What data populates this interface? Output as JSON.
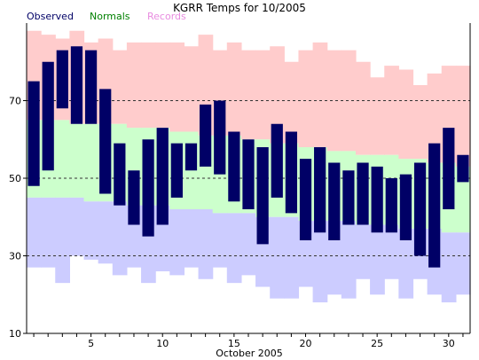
{
  "chart_data": {
    "type": "bar",
    "title": "KGRR Temps for 10/2005",
    "xlabel": "October 2005",
    "ylabel": "",
    "legend": [
      {
        "label": "Observed",
        "color": "#000066"
      },
      {
        "label": "Normals",
        "color": "#008000"
      },
      {
        "label": "Records",
        "color": "#e88ce0"
      }
    ],
    "ylim": [
      10,
      90
    ],
    "xlim": [
      0.5,
      31.5
    ],
    "x_ticks": [
      5,
      10,
      15,
      20,
      25,
      30
    ],
    "y_ticks": [
      10,
      30,
      50,
      70
    ],
    "gridlines_dashed": [
      30,
      50,
      70
    ],
    "days": [
      1,
      2,
      3,
      4,
      5,
      6,
      7,
      8,
      9,
      10,
      11,
      12,
      13,
      14,
      15,
      16,
      17,
      18,
      19,
      20,
      21,
      22,
      23,
      24,
      25,
      26,
      27,
      28,
      29,
      30,
      31
    ],
    "observed_high": [
      75,
      80,
      83,
      84,
      83,
      73,
      59,
      52,
      60,
      63,
      59,
      59,
      69,
      70,
      62,
      60,
      58,
      64,
      62,
      55,
      58,
      54,
      52,
      54,
      53,
      50,
      51,
      54,
      59,
      63,
      56
    ],
    "observed_low": [
      48,
      52,
      68,
      64,
      64,
      46,
      43,
      38,
      35,
      38,
      45,
      52,
      53,
      51,
      44,
      42,
      33,
      45,
      41,
      34,
      36,
      34,
      38,
      38,
      36,
      36,
      34,
      30,
      27,
      42,
      49
    ],
    "normal_high": [
      65,
      65,
      65,
      64,
      64,
      64,
      64,
      63,
      63,
      63,
      62,
      62,
      61,
      61,
      61,
      60,
      60,
      59,
      59,
      58,
      58,
      57,
      57,
      56,
      56,
      56,
      55,
      55,
      54,
      54,
      53
    ],
    "normal_low": [
      45,
      45,
      45,
      45,
      44,
      44,
      44,
      43,
      43,
      43,
      42,
      42,
      42,
      41,
      41,
      41,
      40,
      40,
      40,
      39,
      39,
      39,
      39,
      38,
      38,
      38,
      37,
      37,
      37,
      36,
      36
    ],
    "record_high": [
      88,
      87,
      86,
      88,
      85,
      86,
      83,
      85,
      85,
      85,
      85,
      84,
      87,
      83,
      85,
      83,
      83,
      84,
      80,
      83,
      85,
      83,
      83,
      80,
      76,
      79,
      78,
      74,
      77,
      79,
      79
    ],
    "record_low": [
      27,
      27,
      23,
      30,
      29,
      28,
      25,
      27,
      23,
      26,
      25,
      27,
      24,
      27,
      23,
      25,
      22,
      19,
      19,
      22,
      18,
      20,
      19,
      24,
      20,
      24,
      19,
      24,
      20,
      18,
      20
    ],
    "colors": {
      "records_band": "#ffcccc",
      "normals_band": "#ccffcc",
      "below_normal_band": "#ccccff",
      "observed_bar": "#000066",
      "grid": "#333333",
      "axis": "#000000"
    }
  }
}
